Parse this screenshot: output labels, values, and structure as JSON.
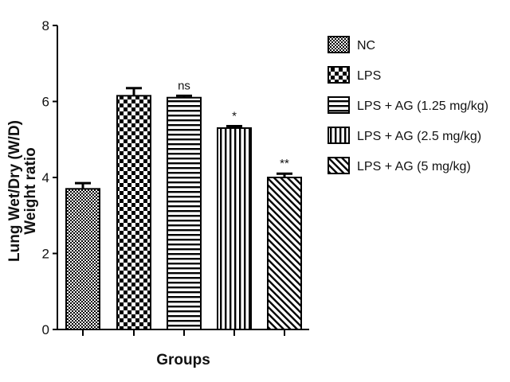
{
  "chart_data": {
    "type": "bar",
    "title": "",
    "xlabel": "Groups",
    "ylabel_line1": "Lung Wet/Dry (W/D)",
    "ylabel_line2": "Weight ratio",
    "ylim": [
      0,
      8
    ],
    "yticks": [
      "0",
      "2",
      "4",
      "6",
      "8"
    ],
    "legend_position": "right",
    "series": [
      {
        "name": "NC",
        "value": 3.7,
        "error": 0.15,
        "sig": "",
        "pattern": "checker-fine"
      },
      {
        "name": "LPS",
        "value": 6.15,
        "error": 0.2,
        "sig": "",
        "pattern": "checker-coarse"
      },
      {
        "name": "LPS + AG (1.25 mg/kg)",
        "value": 6.1,
        "error": 0.05,
        "sig": "ns",
        "pattern": "horizontal"
      },
      {
        "name": "LPS + AG (2.5 mg/kg)",
        "value": 5.3,
        "error": 0.05,
        "sig": "*",
        "pattern": "vertical"
      },
      {
        "name": "LPS + AG (5 mg/kg)",
        "value": 4.0,
        "error": 0.1,
        "sig": "**",
        "pattern": "diagonal"
      }
    ]
  }
}
